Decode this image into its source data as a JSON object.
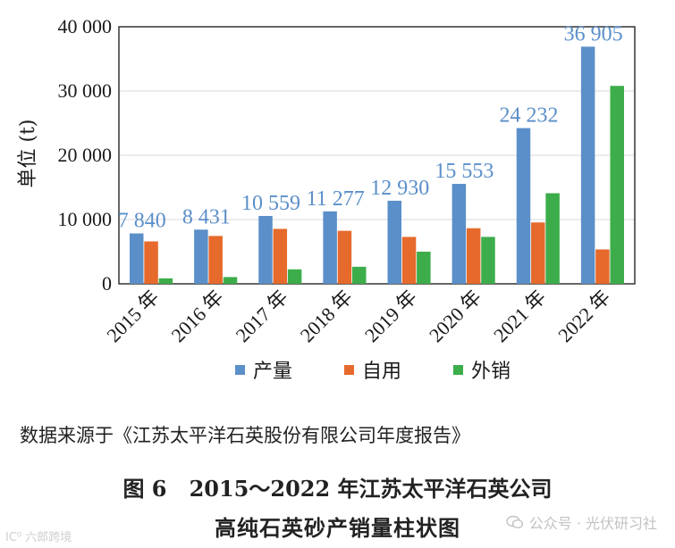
{
  "chart_data": {
    "type": "bar",
    "categories": [
      "2015 年",
      "2016 年",
      "2017 年",
      "2018 年",
      "2019 年",
      "2020 年",
      "2021 年",
      "2022 年"
    ],
    "series": [
      {
        "name": "产量",
        "color": "#5b8fc9",
        "values": [
          7840,
          8431,
          10559,
          11277,
          12930,
          15553,
          24232,
          36905
        ]
      },
      {
        "name": "自用",
        "color": "#e56a2c",
        "values": [
          6600,
          7450,
          8550,
          8250,
          7300,
          8650,
          9550,
          5350
        ]
      },
      {
        "name": "外销",
        "color": "#3cad4a",
        "values": [
          850,
          1050,
          2250,
          2650,
          5000,
          7300,
          14100,
          30800
        ]
      }
    ],
    "data_labels": [
      "7 840",
      "8 431",
      "10 559",
      "11 277",
      "12 930",
      "15 553",
      "24 232",
      "36 905"
    ],
    "yticks": [
      0,
      10000,
      20000,
      30000,
      40000
    ],
    "ytick_labels": [
      "0",
      "10 000",
      "20 000",
      "30 000",
      "40 000"
    ],
    "ylim": [
      0,
      40000
    ],
    "ylabel": "单位 (t)",
    "xlabel": "",
    "legend_position": "bottom"
  },
  "source_note": "数据来源于《江苏太平洋石英股份有限公司年度报告》",
  "caption": {
    "line1": "图 6   2015～2022 年江苏太平洋石英公司",
    "line2": "高纯石英砂产销量柱状图"
  },
  "watermarks": {
    "left": "IC⁰ 六郎跨境",
    "right": "公众号 · 光伏研习社"
  }
}
